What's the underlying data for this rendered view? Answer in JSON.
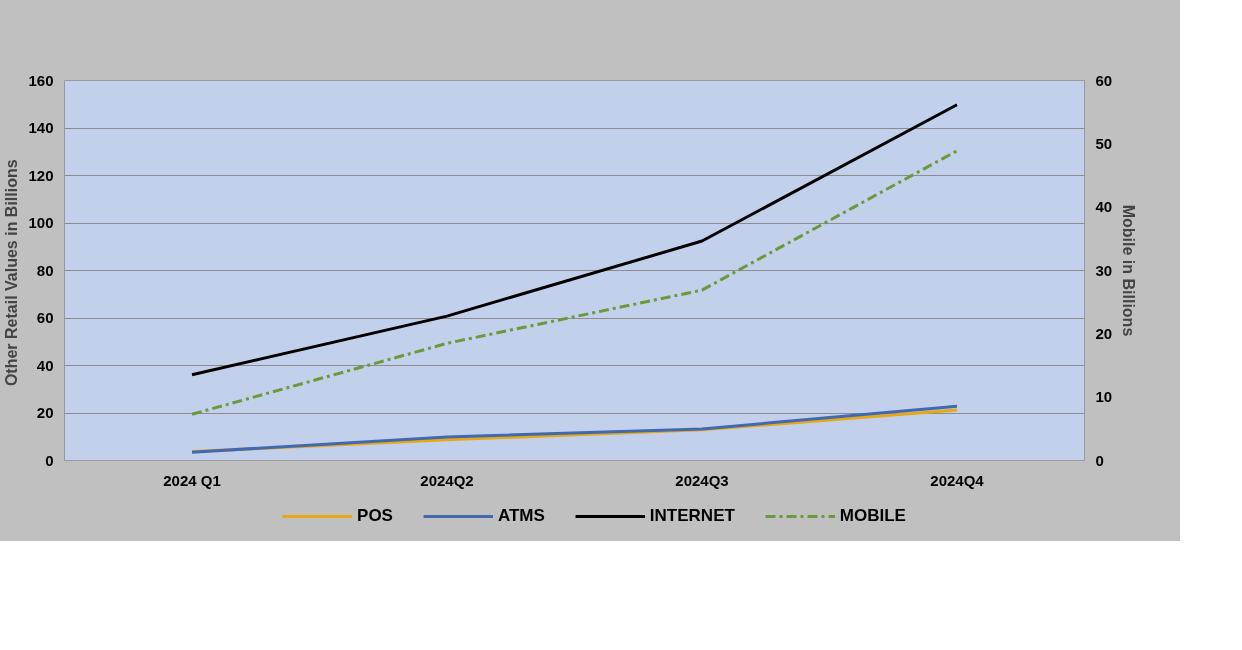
{
  "chart_data": {
    "type": "line",
    "categories": [
      "2024 Q1",
      "2024Q2",
      "2024Q3",
      "2024Q4"
    ],
    "ylabel": "Other Retail Values in  Billions",
    "y2label": "Mobile in Billions",
    "ylim": [
      0,
      160
    ],
    "yticks": [
      0,
      20,
      40,
      60,
      80,
      100,
      120,
      140,
      160
    ],
    "y2lim": [
      0,
      60
    ],
    "y2ticks": [
      0,
      10,
      20,
      30,
      40,
      50,
      60
    ],
    "grid": "y",
    "legend": "bottom",
    "line_style": "solid",
    "series": [
      {
        "name": "POS",
        "color": "#e6a817",
        "values": [
          3.8,
          8.7,
          12.9,
          21.3
        ]
      },
      {
        "name": "ATMS",
        "color": "#4169b0",
        "values": [
          3.5,
          9.9,
          13.3,
          22.8
        ]
      },
      {
        "name": "INTERNET",
        "color": "#000000",
        "values": [
          36.1,
          60.8,
          92.4,
          149.8
        ]
      },
      {
        "name": "MOBILE",
        "color": "#6a9a3a",
        "values": [
          7.3,
          18.5,
          26.9,
          48.9
        ],
        "axis": "y2",
        "line_style": "dashdot"
      }
    ]
  }
}
